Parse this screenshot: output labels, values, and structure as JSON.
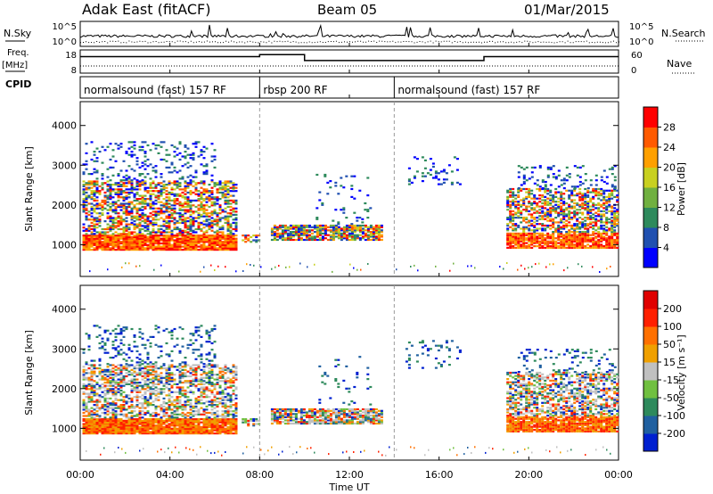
{
  "header": {
    "station": "Adak East (fitACF)",
    "beam": "Beam 05",
    "date": "01/Mar/2015"
  },
  "side_labels": {
    "nsky": "N.Sky",
    "freq": "Freq.",
    "freq_unit": "[MHz]",
    "cpid": "CPID",
    "nsearch": "N.Search",
    "nave": "Nave"
  },
  "chart_data": [
    {
      "type": "line",
      "name": "noise-panel",
      "left_ticks": [
        "10^5",
        "10^0"
      ],
      "right_ticks": [
        "10^5",
        "10^0"
      ],
      "xlim": [
        "00:00",
        "24:00"
      ]
    },
    {
      "type": "line",
      "name": "frequency-panel",
      "left_ticks": [
        "18",
        "8"
      ],
      "right_ticks": [
        "60",
        "0"
      ],
      "steps": [
        {
          "from_hour": 0,
          "to_hour": 8,
          "level": 0.75
        },
        {
          "from_hour": 8,
          "to_hour": 10,
          "level": 0.85
        },
        {
          "from_hour": 10,
          "to_hour": 18,
          "level": 0.55
        },
        {
          "from_hour": 18,
          "to_hour": 24,
          "level": 0.75
        }
      ]
    },
    {
      "type": "table",
      "name": "cpid-panel",
      "segments": [
        {
          "label": "normalsound (fast) 157 RF",
          "start_hour": 0,
          "end_hour": 8
        },
        {
          "label": "rbsp 200 RF",
          "start_hour": 8,
          "end_hour": 14
        },
        {
          "label": "normalsound (fast) 157 RF",
          "start_hour": 14,
          "end_hour": 24
        }
      ]
    },
    {
      "type": "heatmap",
      "name": "power-panel",
      "ylabel": "Slant Range [km]",
      "ylim": [
        200,
        4600
      ],
      "yticks": [
        "1000",
        "2000",
        "3000",
        "4000"
      ],
      "colorbar_label": "Power [dB]",
      "colorbar_ticks": [
        "4",
        "8",
        "12",
        "16",
        "20",
        "24",
        "28"
      ],
      "colorbar_colors": [
        "#0000ff",
        "#2050b0",
        "#2e8a5c",
        "#70b040",
        "#c8d020",
        "#ffa000",
        "#ff5a00",
        "#ff0000"
      ]
    },
    {
      "type": "heatmap",
      "name": "velocity-panel",
      "ylabel": "Slant Range [km]",
      "ylim": [
        200,
        4600
      ],
      "yticks": [
        "1000",
        "2000",
        "3000",
        "4000"
      ],
      "colorbar_label": "Velocity [m s⁻¹]",
      "colorbar_ticks": [
        "200",
        "100",
        "50",
        "15",
        "-15",
        "-50",
        "-100",
        "-200"
      ],
      "colorbar_colors": [
        "#0020d0",
        "#2060a0",
        "#2e8a5c",
        "#70c040",
        "#c0c0c0",
        "#f0a000",
        "#ff7000",
        "#ff2000",
        "#e00000"
      ]
    }
  ],
  "xaxis": {
    "ticks": [
      "00:00",
      "04:00",
      "08:00",
      "12:00",
      "16:00",
      "20:00",
      "00:00"
    ],
    "label": "Time UT"
  }
}
